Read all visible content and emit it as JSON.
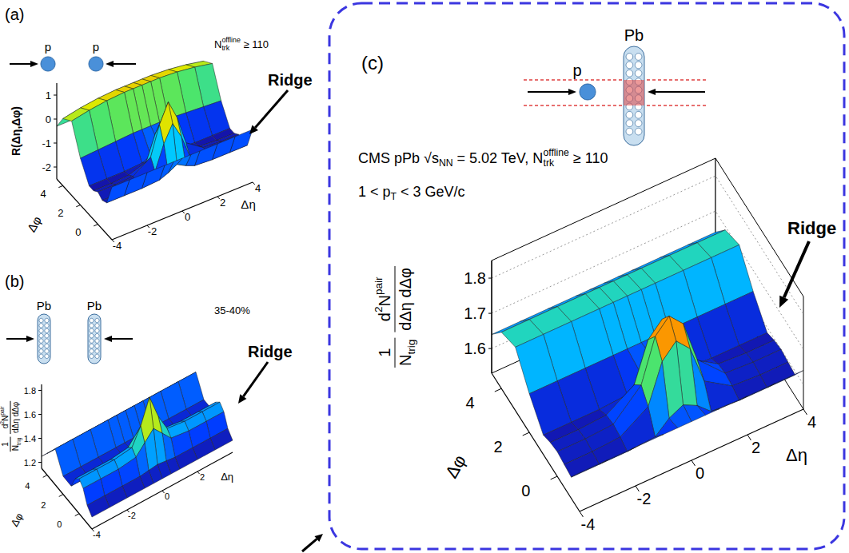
{
  "chart_data": [
    {
      "type": "surface",
      "panel": "(a)",
      "beams": [
        "p",
        "p"
      ],
      "annotations": [
        [
          "N",
          {
            "sub": "trk"
          },
          {
            "sup": "offline"
          },
          " ≥ 110"
        ]
      ],
      "ridge_label": "Ridge",
      "x_title": "Δη",
      "y_title": "Δφ",
      "z_title": "R(Δη,Δφ)",
      "x": [
        -4,
        -3,
        -2,
        -1,
        -0.5,
        0,
        0.5,
        1,
        2,
        3,
        4
      ],
      "y": [
        -1.6,
        -1,
        -0.5,
        0,
        0.5,
        1,
        2,
        3,
        4,
        4.7
      ],
      "z": [
        [
          -0.3,
          -0.3,
          -0.3,
          -0.3,
          -0.3,
          -0.3,
          -0.3,
          -0.3,
          -0.3,
          -0.3,
          -0.3
        ],
        [
          -1.2,
          -1.2,
          -1.2,
          -1.15,
          -1.0,
          -0.8,
          -1.0,
          -1.15,
          -1.2,
          -1.2,
          -1.2
        ],
        [
          -1.3,
          -1.3,
          -1.25,
          -1.0,
          0.0,
          0.7,
          0.0,
          -1.0,
          -1.25,
          -1.3,
          -1.3
        ],
        [
          -1.15,
          -1.15,
          -1.1,
          -0.6,
          0.6,
          1.4,
          0.6,
          -0.6,
          -1.1,
          -1.15,
          -1.15
        ],
        [
          -1.3,
          -1.3,
          -1.25,
          -1.0,
          0.0,
          0.7,
          0.0,
          -1.0,
          -1.25,
          -1.3,
          -1.3
        ],
        [
          -1.3,
          -1.3,
          -1.3,
          -1.25,
          -1.1,
          -0.8,
          -1.1,
          -1.25,
          -1.3,
          -1.3,
          -1.3
        ],
        [
          -0.55,
          -0.5,
          -0.45,
          -0.4,
          -0.4,
          -0.4,
          -0.4,
          -0.4,
          -0.45,
          -0.5,
          -0.55
        ],
        [
          0.6,
          0.75,
          0.85,
          0.9,
          0.9,
          0.9,
          0.9,
          0.9,
          0.85,
          0.75,
          0.6
        ],
        [
          0.3,
          0.45,
          0.55,
          0.6,
          0.6,
          0.6,
          0.6,
          0.6,
          0.55,
          0.45,
          0.3
        ],
        [
          -0.3,
          -0.3,
          -0.3,
          -0.3,
          -0.3,
          -0.3,
          -0.3,
          -0.3,
          -0.3,
          -0.3,
          -0.3
        ]
      ],
      "xlim": [
        -4,
        4
      ],
      "xticks": [
        -4,
        -2,
        0,
        2,
        4
      ],
      "ylim": [
        -1.6,
        4.7
      ],
      "yticks": [
        0,
        2,
        4
      ],
      "zlim": [
        -2.5,
        1.5
      ],
      "zticks": [
        -2,
        -1,
        0,
        1
      ]
    },
    {
      "type": "surface",
      "panel": "(b)",
      "beams": [
        "Pb",
        "Pb"
      ],
      "annotations": [
        [
          "35-40%"
        ]
      ],
      "ridge_label": "Ridge",
      "x_title": "Δη",
      "y_title": "Δφ",
      "z_title": {
        "fractions": [
          {
            "num": [
              "1"
            ],
            "den": [
              "N",
              {
                "sub": "trig"
              }
            ]
          },
          {
            "num": [
              "d",
              {
                "sup": "2"
              },
              "N",
              {
                "sup": "pair"
              }
            ],
            "den": [
              "dΔη dΔφ"
            ]
          }
        ]
      },
      "x": [
        -4,
        -3,
        -2,
        -1,
        -0.5,
        0,
        0.5,
        1,
        2,
        3,
        4
      ],
      "y": [
        -1.6,
        -1,
        -0.5,
        0,
        0.5,
        1,
        2,
        3,
        4,
        4.7
      ],
      "z": [
        [
          1.25,
          1.25,
          1.25,
          1.25,
          1.25,
          1.25,
          1.25,
          1.25,
          1.25,
          1.25,
          1.25
        ],
        [
          1.3,
          1.3,
          1.3,
          1.3,
          1.31,
          1.32,
          1.31,
          1.3,
          1.3,
          1.3,
          1.3
        ],
        [
          1.4,
          1.4,
          1.4,
          1.42,
          1.5,
          1.58,
          1.5,
          1.42,
          1.4,
          1.4,
          1.4
        ],
        [
          1.44,
          1.44,
          1.44,
          1.46,
          1.6,
          1.8,
          1.6,
          1.46,
          1.44,
          1.44,
          1.44
        ],
        [
          1.4,
          1.4,
          1.4,
          1.42,
          1.5,
          1.58,
          1.5,
          1.42,
          1.4,
          1.4,
          1.4
        ],
        [
          1.3,
          1.3,
          1.3,
          1.3,
          1.31,
          1.32,
          1.31,
          1.3,
          1.3,
          1.3,
          1.3
        ],
        [
          1.3,
          1.3,
          1.3,
          1.3,
          1.3,
          1.3,
          1.3,
          1.3,
          1.3,
          1.3,
          1.3
        ],
        [
          1.45,
          1.45,
          1.45,
          1.45,
          1.45,
          1.45,
          1.45,
          1.45,
          1.45,
          1.45,
          1.45
        ],
        [
          1.33,
          1.33,
          1.33,
          1.33,
          1.33,
          1.33,
          1.33,
          1.33,
          1.33,
          1.33,
          1.33
        ],
        [
          1.25,
          1.25,
          1.25,
          1.25,
          1.25,
          1.25,
          1.25,
          1.25,
          1.25,
          1.25,
          1.25
        ]
      ],
      "xlim": [
        -4,
        4
      ],
      "xticks": [
        -4,
        -2,
        0,
        2
      ],
      "ylim": [
        -1.6,
        4.7
      ],
      "yticks": [
        0,
        2,
        4
      ],
      "zlim": [
        1.15,
        1.85
      ],
      "zticks": [
        1.2,
        1.4,
        1.6,
        1.8
      ]
    },
    {
      "type": "surface",
      "panel": "(c)",
      "beams": [
        "p",
        "Pb"
      ],
      "annotations": [
        [
          "CMS pPb √s",
          {
            "sub": "NN"
          },
          " = 5.02 TeV, N",
          {
            "sub": "trk"
          },
          {
            "sup": "offline"
          },
          " ≥ 110"
        ],
        [
          "1 < p",
          {
            "sub": "T"
          },
          " < 3 GeV/c"
        ]
      ],
      "ridge_label": "Ridge",
      "x_title": "Δη",
      "y_title": "Δφ",
      "z_title": {
        "fractions": [
          {
            "num": [
              "1"
            ],
            "den": [
              "N",
              {
                "sub": "trig"
              }
            ]
          },
          {
            "num": [
              "d",
              {
                "sup": "2"
              },
              "N",
              {
                "sup": "pair"
              }
            ],
            "den": [
              "dΔη dΔφ"
            ]
          }
        ]
      },
      "x": [
        -4,
        -3,
        -2,
        -1,
        -0.5,
        0,
        0.5,
        1,
        2,
        3,
        4
      ],
      "y": [
        -1.6,
        -1,
        -0.5,
        0,
        0.5,
        1,
        2,
        3,
        4,
        4.7
      ],
      "z": [
        [
          1.64,
          1.64,
          1.64,
          1.64,
          1.64,
          1.64,
          1.64,
          1.64,
          1.64,
          1.64,
          1.64
        ],
        [
          1.59,
          1.59,
          1.59,
          1.595,
          1.63,
          1.65,
          1.63,
          1.595,
          1.59,
          1.59,
          1.59
        ],
        [
          1.595,
          1.595,
          1.6,
          1.65,
          1.76,
          1.8,
          1.76,
          1.65,
          1.6,
          1.595,
          1.595
        ],
        [
          1.6,
          1.6,
          1.605,
          1.68,
          1.8,
          1.84,
          1.8,
          1.68,
          1.605,
          1.6,
          1.6
        ],
        [
          1.595,
          1.595,
          1.6,
          1.65,
          1.76,
          1.8,
          1.76,
          1.65,
          1.6,
          1.595,
          1.595
        ],
        [
          1.585,
          1.585,
          1.585,
          1.59,
          1.63,
          1.65,
          1.63,
          1.59,
          1.585,
          1.585,
          1.585
        ],
        [
          1.64,
          1.64,
          1.64,
          1.64,
          1.64,
          1.64,
          1.64,
          1.64,
          1.64,
          1.64,
          1.64
        ],
        [
          1.71,
          1.71,
          1.71,
          1.71,
          1.71,
          1.71,
          1.71,
          1.71,
          1.71,
          1.71,
          1.71
        ],
        [
          1.69,
          1.69,
          1.69,
          1.69,
          1.69,
          1.69,
          1.69,
          1.69,
          1.69,
          1.69,
          1.69
        ],
        [
          1.64,
          1.64,
          1.64,
          1.64,
          1.64,
          1.64,
          1.64,
          1.64,
          1.64,
          1.64,
          1.64
        ]
      ],
      "xlim": [
        -4,
        4
      ],
      "xticks": [
        -4,
        -2,
        0,
        2,
        4
      ],
      "ylim": [
        -1.6,
        4.7
      ],
      "yticks": [
        0,
        2,
        4
      ],
      "zlim": [
        1.53,
        1.85
      ],
      "zticks": [
        1.6,
        1.7,
        1.8
      ]
    }
  ]
}
